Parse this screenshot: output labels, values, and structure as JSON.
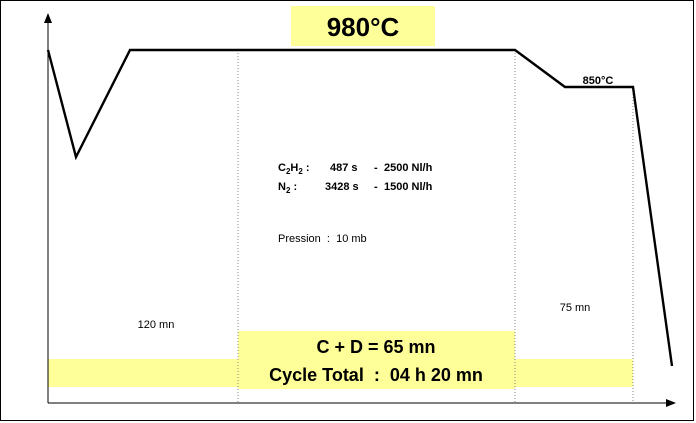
{
  "temperature_main": "980°C",
  "temperature_second": "850°C",
  "gas": {
    "c2h2": {
      "label_base": "C",
      "label_sub1": "2",
      "label_mid": "H",
      "label_sub2": "2",
      "label_suffix": " :",
      "time": "487 s",
      "sep": "-",
      "flow": "2500 Nl/h"
    },
    "n2": {
      "label_base": "N",
      "label_sub1": "2",
      "label_suffix": " :",
      "time": "3428 s",
      "sep": "-",
      "flow": "1500 Nl/h"
    }
  },
  "pressure": "Pression  :  10 mb",
  "durations": {
    "left": "120 mn",
    "right": "75 mn"
  },
  "summary": {
    "cd": "C + D = 65 mn",
    "cycle": "Cycle Total  :  04 h 20 mn"
  },
  "colors": {
    "highlight": "#ffff99",
    "line": "#000000"
  }
}
